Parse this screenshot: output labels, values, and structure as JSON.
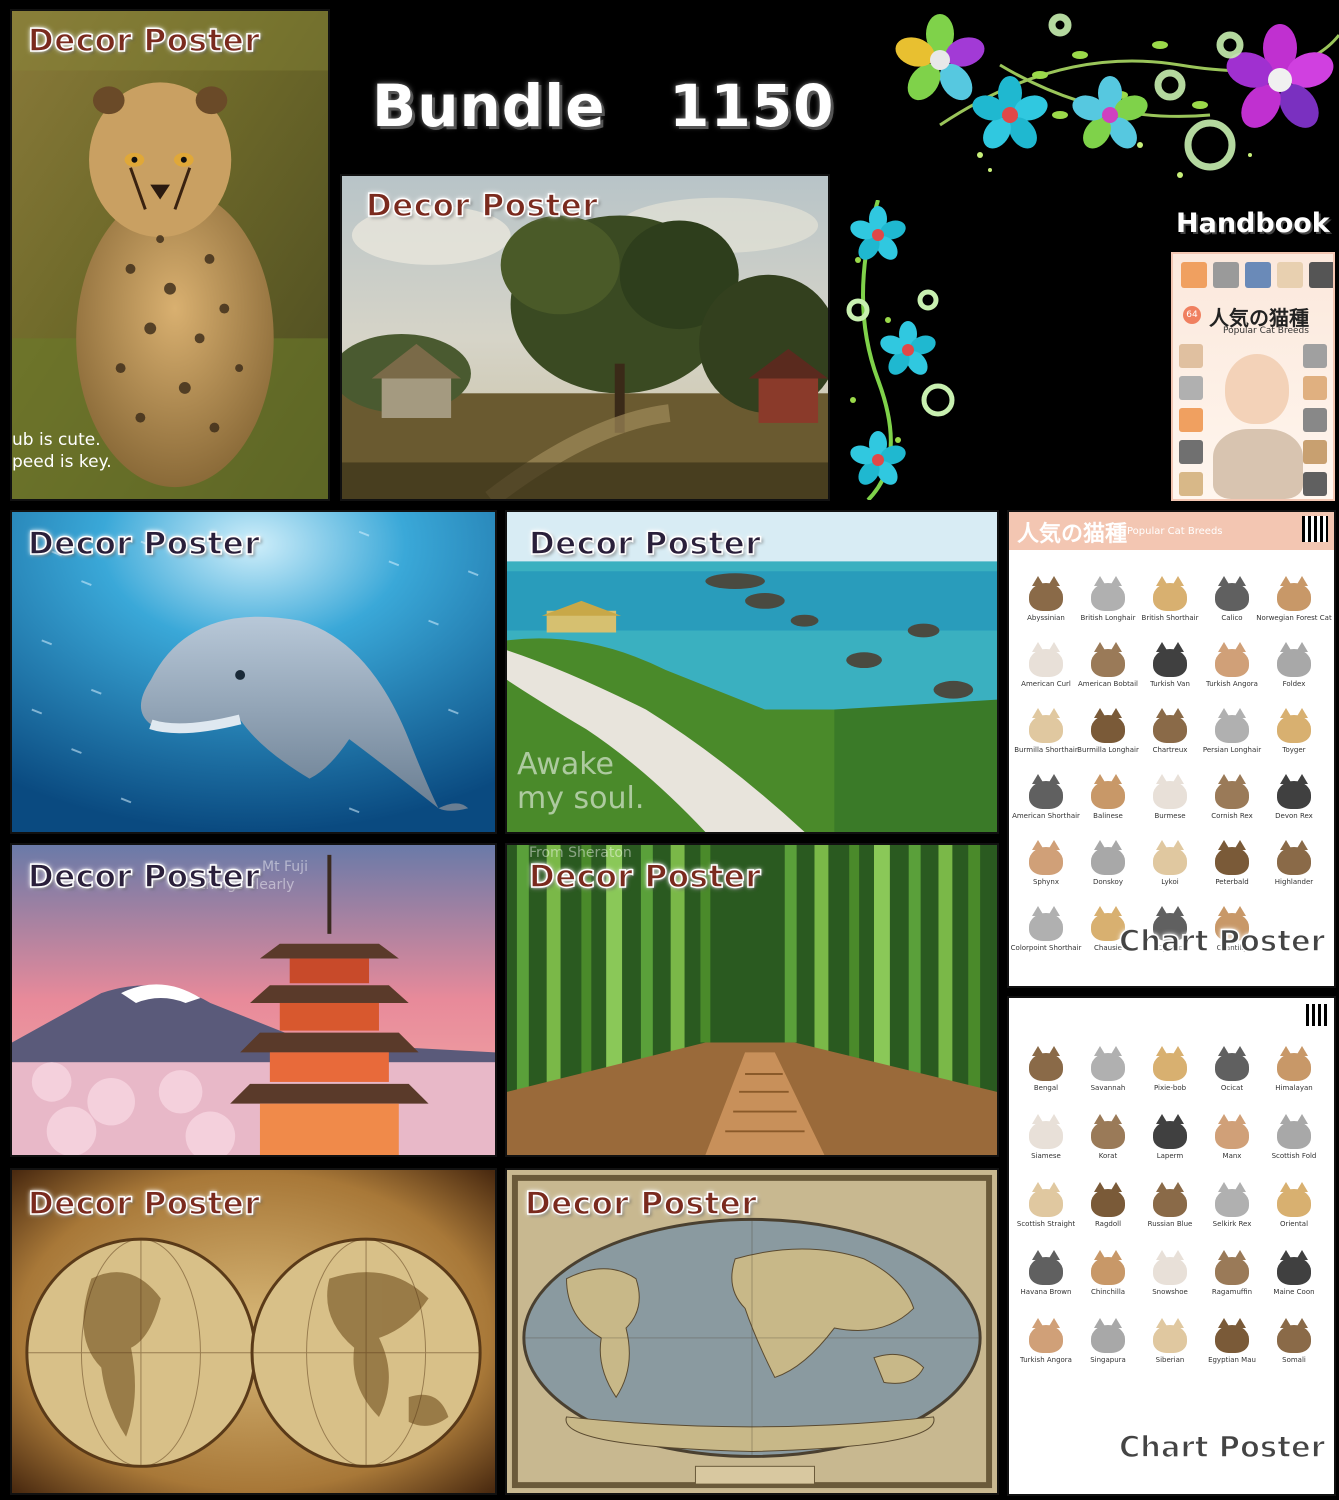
{
  "title": {
    "bundle": "Bundle   1150",
    "handbook": "Handbook"
  },
  "labels": {
    "decor": "Decor Poster",
    "chart": "Chart Poster"
  },
  "captions": {
    "cheetah": [
      "ub is cute.",
      "peed is key."
    ],
    "coast": [
      "Awake",
      "my soul."
    ],
    "fuji": [
      "Mt Fuji",
      "of things clearly"
    ],
    "bamboo": [
      "From Sheraton"
    ]
  },
  "handbook": {
    "number": "64",
    "title": "人気の猫種",
    "subtitle": "Popular Cat Breeds"
  },
  "chart1": {
    "title": "人気の猫種",
    "subtitle": "Popular Cat Breeds",
    "breeds": [
      "Abyssinian",
      "British Longhair",
      "British Shorthair",
      "Calico",
      "Norwegian Forest Cat",
      "American Curl",
      "American Bobtail",
      "Turkish Van",
      "Turkish Angora",
      "Foldex",
      "Burmilla Shorthair",
      "Burmilla Longhair",
      "Chartreux",
      "Persian Longhair",
      "Toyger",
      "American Shorthair",
      "Balinese",
      "Burmese",
      "Cornish Rex",
      "Devon Rex",
      "Sphynx",
      "Donskoy",
      "Lykoi",
      "Peterbald",
      "Highlander",
      "Colorpoint Shorthair",
      "Chausie",
      "Cymric",
      "Chantilly"
    ]
  },
  "chart2": {
    "breeds": [
      "Bengal",
      "Savannah",
      "Pixie-bob",
      "Ocicat",
      "Himalayan",
      "Siamese",
      "Korat",
      "Laperm",
      "Manx",
      "Scottish Fold",
      "Scottish Straight",
      "Ragdoll",
      "Russian Blue",
      "Selkirk Rex",
      "Oriental",
      "Havana Brown",
      "Chinchilla",
      "Snowshoe",
      "Ragamuffin",
      "Maine Coon",
      "Turkish Angora",
      "Singapura",
      "Siberian",
      "Egyptian Mau",
      "Somali"
    ]
  },
  "colors": {
    "background": "#000000",
    "tag_dark": "#7a2a1e",
    "chart_header": "#f3c6b2"
  },
  "icons": [
    "flower-cluster-icon",
    "vine-flower-icon"
  ]
}
